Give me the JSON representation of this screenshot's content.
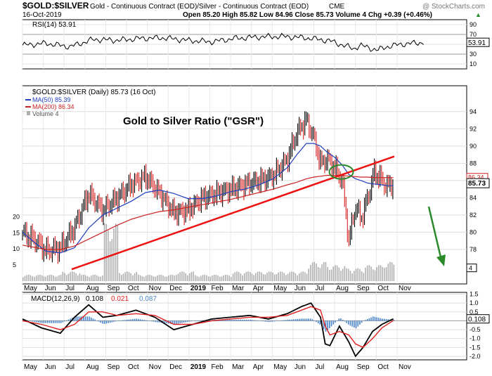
{
  "header": {
    "symbol": "$GOLD:$SILVER",
    "description": "Gold - Continuous Contract (EOD)/Silver - Continuous Contract (EOD)",
    "exchange": "CME",
    "watermark": "@ StockCharts.com",
    "date": "16-Oct-2019",
    "ohlc": "Open 85.20  High 85.82  Low 84.96  Close 85.73  Volume 4  Chg +0.39 (+0.46%)",
    "ohlc_arrow": "▲"
  },
  "colors": {
    "price_up": "#000000",
    "price_down": "#d62020",
    "ma50": "#1f3fbf",
    "ma200": "#cc2222",
    "trendline": "#ee1111",
    "ellipse": "#2a8a2a",
    "arrow": "#2a8a2a",
    "volume": "#b0b0b0",
    "macd_hist": "#4a86c8",
    "signal": "#e02020",
    "panel_bg": "#ffffff",
    "grid": "#dddddd",
    "label_bg": "#666666"
  },
  "chart_data": [
    {
      "panel": "rsi",
      "type": "line",
      "legend": "RSI(14) 53.91",
      "last_value": "53.91",
      "y_ticks": [
        90,
        70,
        50,
        30,
        10
      ],
      "overbought": 70,
      "oversold": 30,
      "ylim": [
        0,
        100
      ],
      "x": [
        0,
        25,
        50,
        75,
        100,
        125,
        150,
        175,
        200,
        225,
        250,
        275,
        300,
        325,
        350,
        357,
        375,
        385,
        400,
        425
      ],
      "values": [
        48,
        52,
        45,
        60,
        58,
        62,
        63,
        58,
        55,
        62,
        65,
        66,
        63,
        57,
        41,
        48,
        38,
        45,
        50,
        54
      ]
    },
    {
      "panel": "price",
      "type": "line",
      "legend_title": "$GOLD:$SILVER (Daily) 85.73 (16 Oct)",
      "legend_ma50": "MA(50) 85.39",
      "legend_ma200": "MA(200) 86.34",
      "legend_volume": "Volume 4",
      "annotation": "Gold to Silver Ratio (\"GSR\")",
      "last_label": "85.73",
      "ma200_label": "86.34",
      "ylim": [
        74,
        97
      ],
      "y_ticks": [
        94,
        92,
        90,
        88,
        86,
        84,
        82,
        80,
        78
      ],
      "x_labels": [
        "May",
        "Jun",
        "Jul",
        "Aug",
        "Sep",
        "Oct",
        "Nov",
        "Dec",
        "2019",
        "Feb",
        "Mar",
        "Apr",
        "May",
        "Jun",
        "Jul",
        "Aug",
        "Sep",
        "Oct",
        "Nov"
      ],
      "x_label_positions": [
        0,
        22,
        44,
        66,
        88,
        110,
        132,
        154,
        176,
        198,
        220,
        242,
        264,
        286,
        308,
        330,
        352,
        374,
        396
      ],
      "x_max": 425,
      "x": [
        0,
        15,
        25,
        40,
        55,
        70,
        85,
        100,
        115,
        130,
        145,
        160,
        175,
        190,
        205,
        220,
        235,
        250,
        265,
        280,
        290,
        300,
        308,
        315,
        322,
        330,
        338,
        345,
        352,
        358,
        365,
        372,
        380,
        386,
        392
      ],
      "close": [
        79.9,
        79.0,
        77.8,
        78.2,
        80.5,
        84.5,
        82.5,
        84.0,
        85.5,
        86.5,
        84.5,
        82.3,
        82.5,
        84.0,
        84.5,
        85.0,
        85.5,
        86.0,
        86.5,
        88.5,
        91.5,
        93.0,
        91.0,
        88.0,
        88.5,
        87.5,
        86.0,
        79.0,
        83.0,
        81.5,
        84.0,
        87.0,
        86.0,
        85.2,
        85.73
      ],
      "ma50": [
        80.0,
        78.6,
        77.8,
        77.6,
        78.2,
        80.5,
        82.0,
        82.8,
        83.6,
        84.6,
        84.9,
        84.5,
        83.9,
        83.9,
        84.2,
        84.7,
        85.0,
        85.5,
        86.2,
        87.5,
        89.0,
        90.3,
        90.3,
        90.0,
        89.3,
        88.7,
        87.8,
        86.7,
        86.2,
        86.0,
        85.7,
        85.6,
        85.5,
        85.4,
        85.39
      ],
      "ma200": [
        78.5,
        78.2,
        78.0,
        78.0,
        78.4,
        79.2,
        80.0,
        80.8,
        81.5,
        82.0,
        82.4,
        82.6,
        82.9,
        83.2,
        83.5,
        83.8,
        84.2,
        84.6,
        85.0,
        85.5,
        85.8,
        86.2,
        86.4,
        86.5,
        86.6,
        86.6,
        86.6,
        86.5,
        86.45,
        86.4,
        86.4,
        86.35,
        86.34,
        86.34,
        86.34
      ],
      "trendline": {
        "x": [
          52,
          393
        ],
        "y": [
          75.7,
          88.8
        ]
      },
      "ellipse_center": {
        "x": 337,
        "y": 87.0
      },
      "volume_y_ticks": [
        20,
        15,
        10,
        5
      ],
      "volume_tick_label": "4",
      "volume_ylim": [
        0,
        24
      ],
      "volume_x": [
        0,
        20,
        40,
        60,
        80,
        86,
        100,
        120,
        140,
        160,
        180,
        200,
        220,
        240,
        260,
        280,
        300,
        320,
        340,
        360,
        380,
        392
      ],
      "volume_values": [
        2,
        2,
        3,
        2,
        2,
        18,
        3,
        2,
        2,
        3,
        2,
        2,
        3,
        3,
        3,
        3,
        6,
        5,
        4,
        5,
        6,
        4
      ]
    },
    {
      "panel": "macd",
      "type": "line",
      "legend_prefix": "MACD(12,26,9)",
      "legend_macd": "0.108",
      "legend_signal": "0.021",
      "legend_hist": "0.087",
      "last_value": "0.108",
      "ylim": [
        -2.2,
        1.6
      ],
      "y_ticks": [
        1.5,
        1.0,
        0.5,
        0.0,
        -0.5,
        -1.0,
        -1.5,
        -2.0
      ],
      "y_tick_labels": [
        "1.5",
        "1.0",
        "0.5",
        "",
        "-0.5",
        "-1.0",
        "-1.5",
        "-2.0"
      ],
      "x": [
        0,
        20,
        40,
        55,
        70,
        85,
        100,
        120,
        140,
        160,
        180,
        200,
        220,
        240,
        260,
        280,
        295,
        305,
        315,
        320,
        325,
        335,
        345,
        352,
        360,
        370,
        380,
        392
      ],
      "macd": [
        0.1,
        -0.4,
        -0.7,
        0.2,
        0.9,
        0.2,
        0.3,
        0.6,
        0.2,
        -0.5,
        -0.2,
        0.1,
        0.2,
        0.3,
        0.1,
        0.4,
        0.8,
        1.0,
        0.2,
        -1.3,
        -1.4,
        -0.3,
        -1.2,
        -2.0,
        -1.5,
        -0.6,
        -0.2,
        0.108
      ],
      "signal": [
        0.0,
        -0.2,
        -0.5,
        -0.2,
        0.5,
        0.5,
        0.3,
        0.4,
        0.3,
        -0.2,
        -0.2,
        0.0,
        0.1,
        0.2,
        0.2,
        0.3,
        0.6,
        0.8,
        0.6,
        -0.3,
        -0.8,
        -0.6,
        -0.8,
        -1.3,
        -1.5,
        -1.0,
        -0.4,
        0.021
      ]
    }
  ]
}
